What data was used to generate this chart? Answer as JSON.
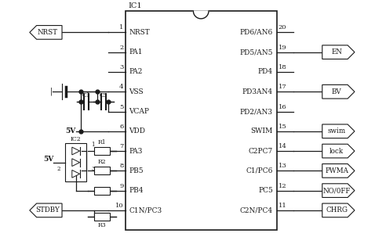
{
  "bg_color": "#ffffff",
  "line_color": "#1a1a1a",
  "text_color": "#1a1a1a",
  "figsize": [
    4.78,
    3.03
  ],
  "dpi": 100,
  "ic_label": "IC1",
  "left_pins": [
    {
      "num": 1,
      "label": "NRST",
      "yf": 0.125
    },
    {
      "num": 2,
      "label": "PA1",
      "yf": 0.21
    },
    {
      "num": 3,
      "label": "PA2",
      "yf": 0.295
    },
    {
      "num": 4,
      "label": "VSS",
      "yf": 0.38
    },
    {
      "num": 5,
      "label": "VCAP",
      "yf": 0.465
    },
    {
      "num": 6,
      "label": "VDD",
      "yf": 0.55
    },
    {
      "num": 7,
      "label": "PA3",
      "yf": 0.635
    },
    {
      "num": 8,
      "label": "PB5",
      "yf": 0.72
    },
    {
      "num": 9,
      "label": "PB4",
      "yf": 0.805
    },
    {
      "num": 10,
      "label": "C1N/PC3",
      "yf": 0.89
    }
  ],
  "right_pins": [
    {
      "num": 20,
      "label": "PD6/AN6",
      "yf": 0.125
    },
    {
      "num": 19,
      "label": "PD5/AN5",
      "yf": 0.21
    },
    {
      "num": 18,
      "label": "PD4",
      "yf": 0.295
    },
    {
      "num": 17,
      "label": "PD3AN4",
      "yf": 0.38
    },
    {
      "num": 16,
      "label": "PD2/AN3",
      "yf": 0.465
    },
    {
      "num": 15,
      "label": "SWIM",
      "yf": 0.55
    },
    {
      "num": 14,
      "label": "C2PC7",
      "yf": 0.635
    },
    {
      "num": 13,
      "label": "C1/PC6",
      "yf": 0.72
    },
    {
      "num": 12,
      "label": "PC5",
      "yf": 0.805
    },
    {
      "num": 11,
      "label": "C2N/PC4",
      "yf": 0.89
    }
  ],
  "right_connectors": [
    {
      "label": "EN",
      "yf": 0.21
    },
    {
      "label": "BV",
      "yf": 0.38
    },
    {
      "label": "swim",
      "yf": 0.55
    },
    {
      "label": "lock",
      "yf": 0.635
    },
    {
      "label": "PWMA",
      "yf": 0.72
    },
    {
      "label": "NO/0FF",
      "yf": 0.805
    },
    {
      "label": "CHRG",
      "yf": 0.89
    }
  ],
  "left_connectors": [
    {
      "label": "NRST",
      "yf": 0.125
    },
    {
      "label": "STDBY",
      "yf": 0.89
    }
  ]
}
